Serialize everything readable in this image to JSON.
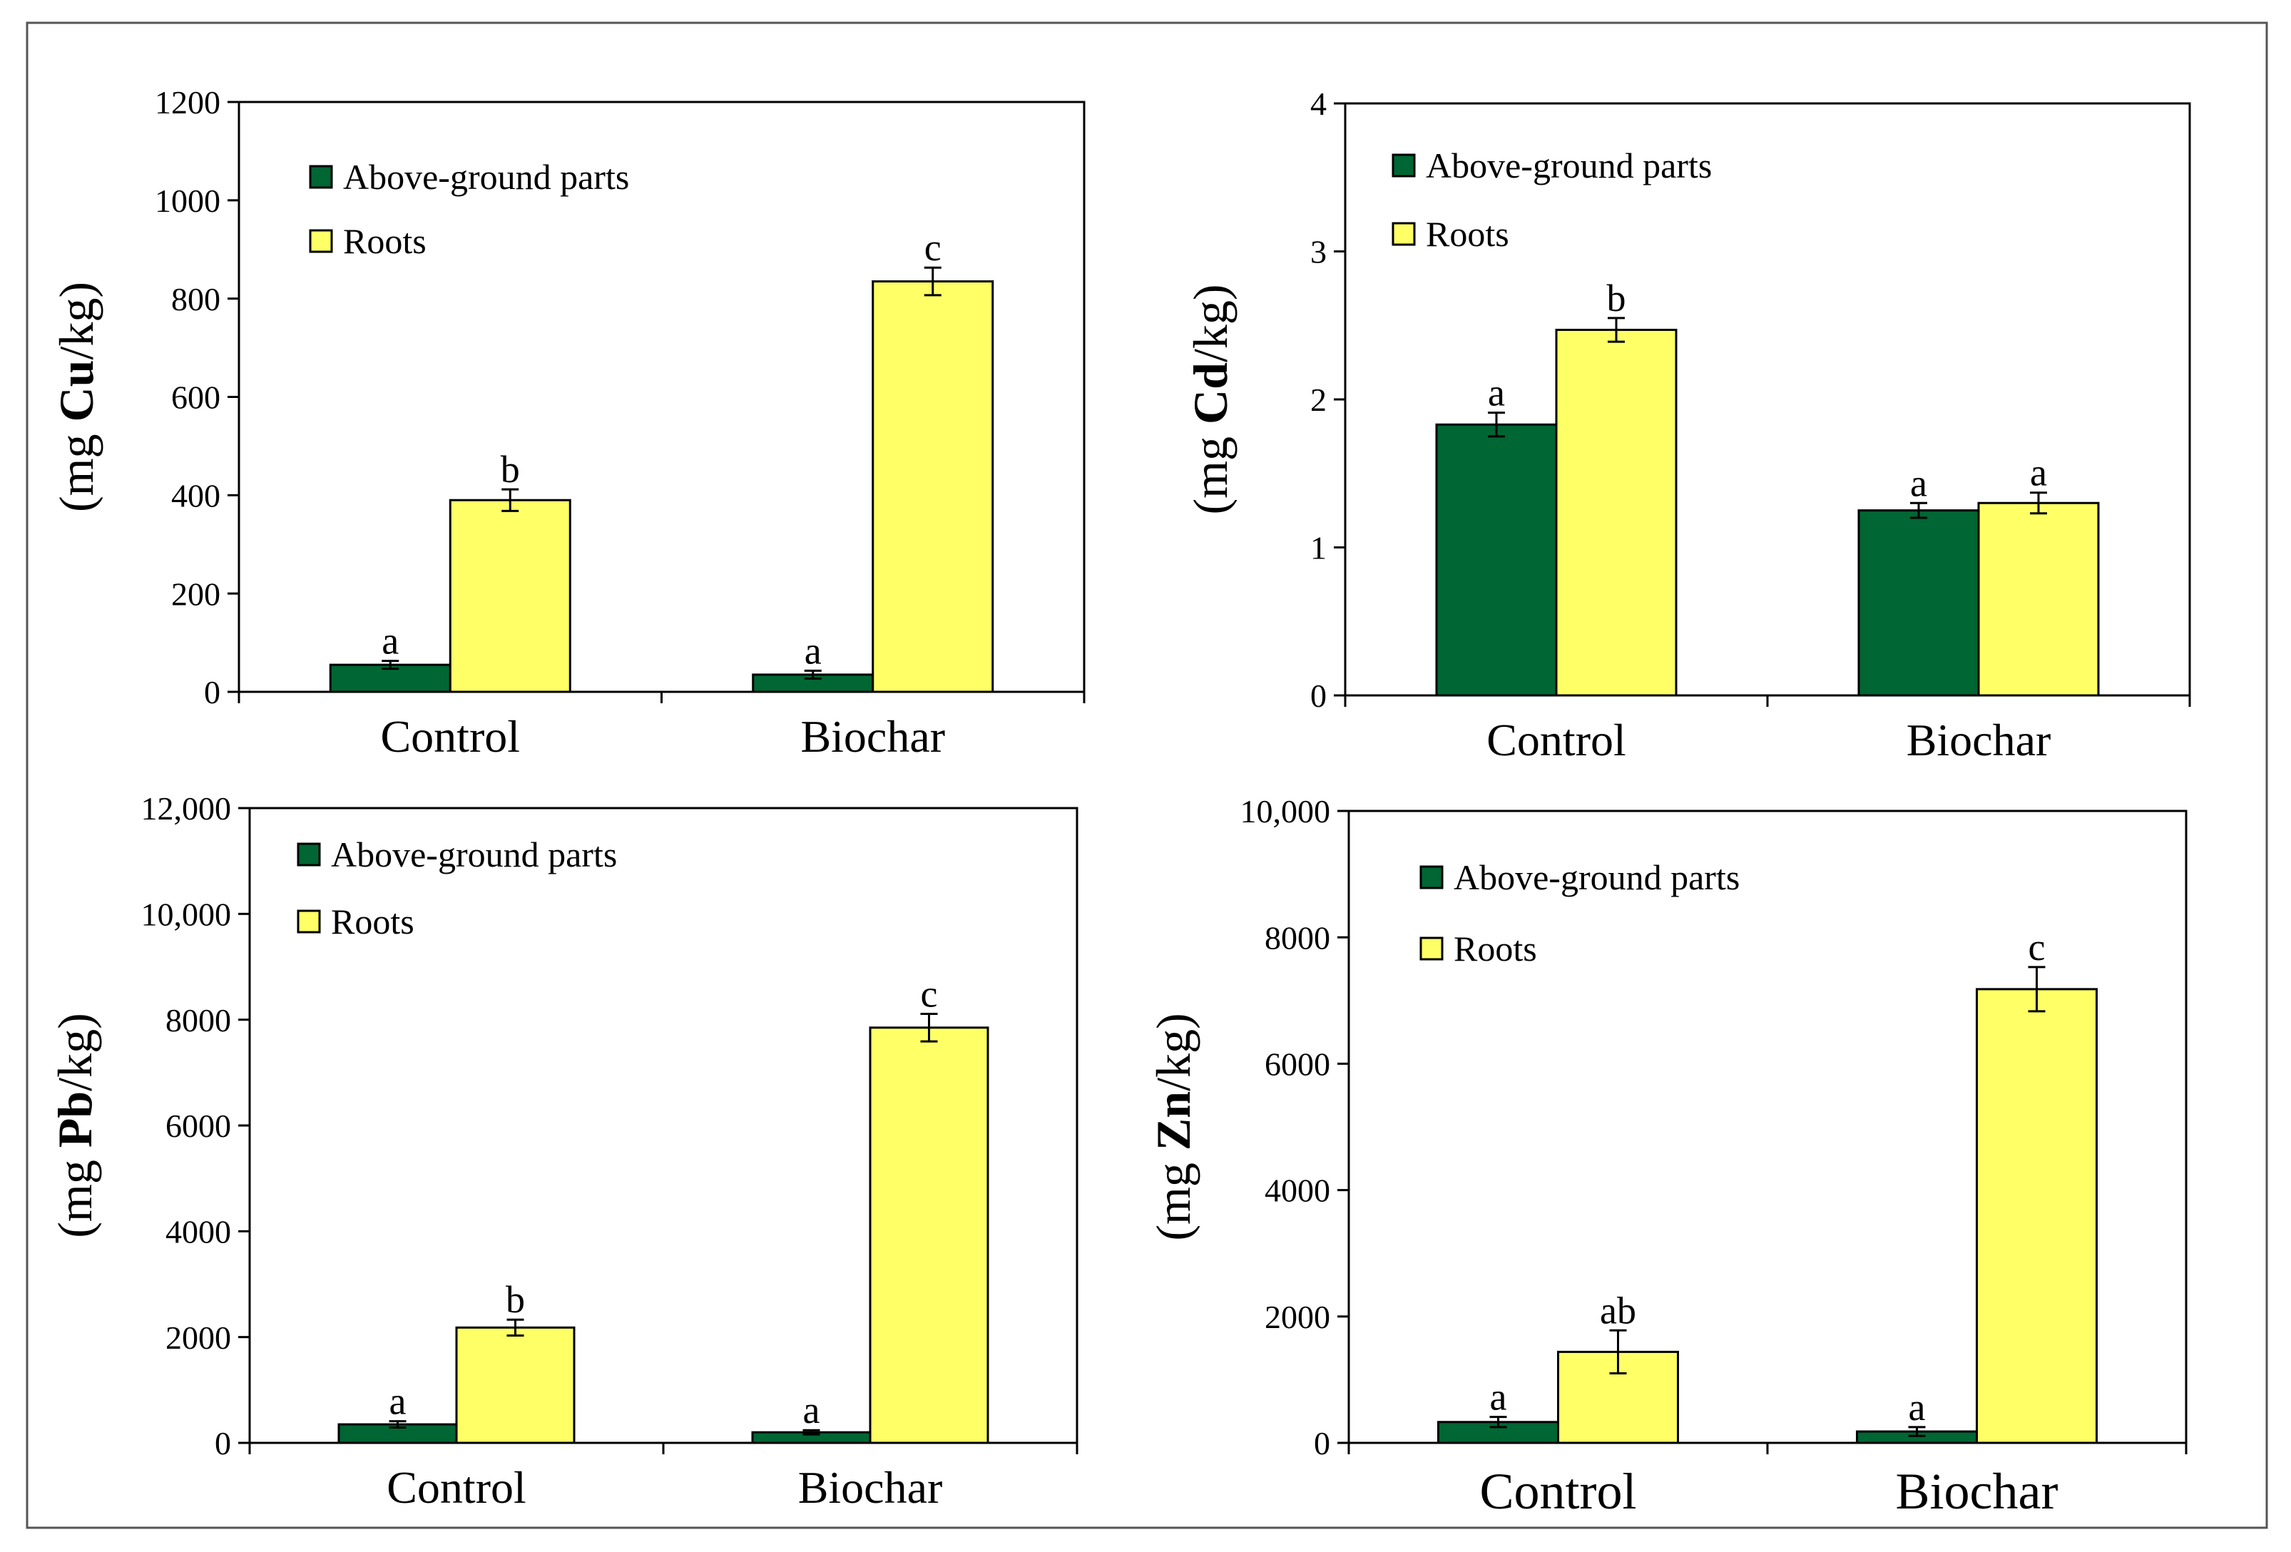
{
  "figure": {
    "frame": true
  },
  "colors": {
    "above": "#006633",
    "roots": "#ffff66",
    "axis": "#000000"
  },
  "chart_data": [
    {
      "id": "cu",
      "type": "bar",
      "categories": [
        "Control",
        "Biochar"
      ],
      "ylabel_prefix": "(mg ",
      "ylabel_element": "Cu",
      "ylabel_suffix": "/kg)",
      "ylim": [
        0,
        1200
      ],
      "yticks": [
        0,
        200,
        400,
        600,
        800,
        1000,
        1200
      ],
      "ytick_labels": [
        "0",
        "200",
        "400",
        "600",
        "800",
        "1000",
        "1200"
      ],
      "legend_position": "top-left",
      "grid": false,
      "series": [
        {
          "name": "Above-ground parts",
          "values": [
            55,
            35
          ],
          "errors": [
            8,
            8
          ],
          "letters": [
            "a",
            "a"
          ]
        },
        {
          "name": "Roots",
          "values": [
            390,
            835
          ],
          "errors": [
            22,
            28
          ],
          "letters": [
            "b",
            "c"
          ]
        }
      ]
    },
    {
      "id": "cd",
      "type": "bar",
      "categories": [
        "Control",
        "Biochar"
      ],
      "ylabel_prefix": "(mg ",
      "ylabel_element": "Cd",
      "ylabel_suffix": "/kg)",
      "ylim": [
        0,
        4
      ],
      "yticks": [
        0,
        1,
        2,
        3,
        4
      ],
      "ytick_labels": [
        "0",
        "1",
        "2",
        "3",
        "4"
      ],
      "legend_position": "top-left",
      "grid": false,
      "series": [
        {
          "name": "Above-ground parts",
          "values": [
            1.83,
            1.25
          ],
          "errors": [
            0.08,
            0.05
          ],
          "letters": [
            "a",
            "a"
          ]
        },
        {
          "name": "Roots",
          "values": [
            2.47,
            1.3
          ],
          "errors": [
            0.08,
            0.07
          ],
          "letters": [
            "b",
            "a"
          ]
        }
      ]
    },
    {
      "id": "pb",
      "type": "bar",
      "categories": [
        "Control",
        "Biochar"
      ],
      "ylabel_prefix": "(mg ",
      "ylabel_element": "Pb",
      "ylabel_suffix": "/kg)",
      "ylim": [
        0,
        12000
      ],
      "yticks": [
        0,
        2000,
        4000,
        6000,
        8000,
        10000,
        12000
      ],
      "ytick_labels": [
        "0",
        "2000",
        "4000",
        "6000",
        "8000",
        "10,000",
        "12,000"
      ],
      "legend_position": "top-left",
      "grid": false,
      "series": [
        {
          "name": "Above-ground parts",
          "values": [
            350,
            200
          ],
          "errors": [
            60,
            40
          ],
          "letters": [
            "a",
            "a"
          ]
        },
        {
          "name": "Roots",
          "values": [
            2180,
            7850
          ],
          "errors": [
            150,
            260
          ],
          "letters": [
            "b",
            "c"
          ]
        }
      ]
    },
    {
      "id": "zn",
      "type": "bar",
      "categories": [
        "Control",
        "Biochar"
      ],
      "ylabel_prefix": "(mg ",
      "ylabel_element": "Zn",
      "ylabel_suffix": "/kg)",
      "ylim": [
        0,
        10000
      ],
      "yticks": [
        0,
        2000,
        4000,
        6000,
        8000,
        10000
      ],
      "ytick_labels": [
        "0",
        "2000",
        "4000",
        "6000",
        "8000",
        "10,000"
      ],
      "legend_position": "top-left",
      "grid": false,
      "series": [
        {
          "name": "Above-ground parts",
          "values": [
            330,
            180
          ],
          "errors": [
            80,
            70
          ],
          "letters": [
            "a",
            "a"
          ]
        },
        {
          "name": "Roots",
          "values": [
            1440,
            7180
          ],
          "errors": [
            340,
            350
          ],
          "letters": [
            "ab",
            "c"
          ]
        }
      ]
    }
  ]
}
